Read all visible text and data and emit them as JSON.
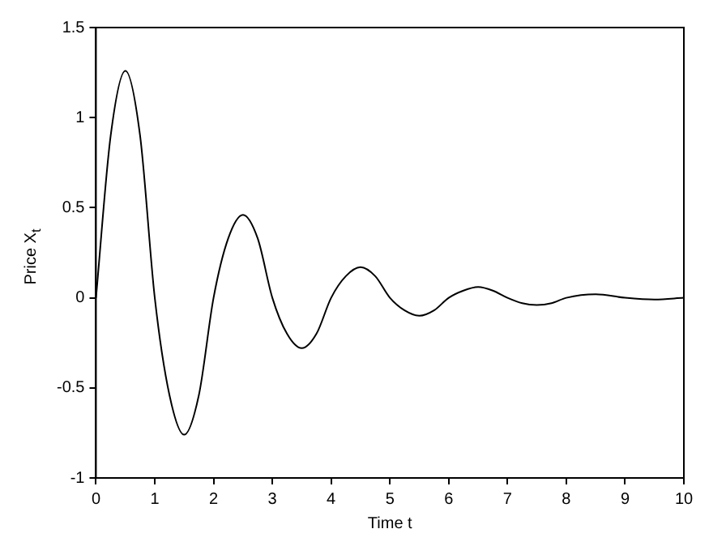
{
  "chart_data": {
    "type": "line",
    "xlabel": "Time t",
    "ylabel": "Price X$_{t}$",
    "x": [
      0,
      0.25,
      0.5,
      0.75,
      1,
      1.25,
      1.5,
      1.75,
      2,
      2.25,
      2.5,
      2.75,
      3,
      3.25,
      3.5,
      3.75,
      4,
      4.25,
      4.5,
      4.75,
      5,
      5.25,
      5.5,
      5.75,
      6,
      6.25,
      6.5,
      6.75,
      7,
      7.25,
      7.5,
      7.75,
      8,
      8.5,
      9,
      9.5,
      10
    ],
    "series": [
      {
        "color": "#000000",
        "values": [
          0,
          0.9,
          1.26,
          0.9,
          0,
          -0.54,
          -0.76,
          -0.54,
          0,
          0.33,
          0.46,
          0.33,
          0,
          -0.2,
          -0.28,
          -0.2,
          0,
          0.12,
          0.17,
          0.12,
          0,
          -0.07,
          -0.1,
          -0.07,
          0,
          0.04,
          0.06,
          0.04,
          0,
          -0.03,
          -0.04,
          -0.03,
          0,
          0.02,
          0,
          -0.01,
          0
        ]
      }
    ],
    "xlim": [
      0,
      10
    ],
    "xticks": [
      0,
      1,
      2,
      3,
      4,
      5,
      6,
      7,
      8,
      9,
      10
    ],
    "ylim": [
      -1,
      1.5
    ],
    "yticks": [
      -1,
      -0.5,
      0,
      0.5,
      1,
      1.5
    ],
    "grid": false,
    "legend": false,
    "marker": "none",
    "line_style": "solid"
  }
}
